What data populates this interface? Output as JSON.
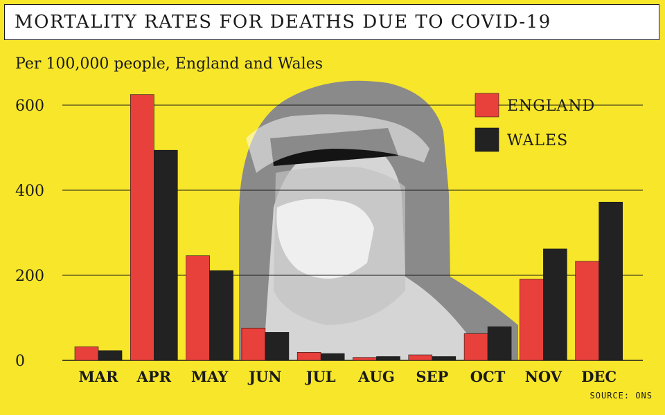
{
  "header": {
    "title": "MORTALITY RATES FOR DEATHS DUE TO COVID-19",
    "subtitle": "Per 100,000 people, England and Wales",
    "source": "SOURCE: ONS"
  },
  "colors": {
    "background": "#f7e62a",
    "england": "#e8403a",
    "wales": "#222222"
  },
  "chart_data": {
    "type": "bar",
    "title": "MORTALITY RATES FOR DEATHS DUE TO COVID-19",
    "subtitle": "Per 100,000 people, England and Wales",
    "xlabel": "",
    "ylabel": "",
    "ylim": [
      0,
      600
    ],
    "yticks": [
      0,
      200,
      400,
      600
    ],
    "grid": true,
    "legend": "top-right",
    "categories": [
      "MAR",
      "APR",
      "MAY",
      "JUN",
      "JUL",
      "AUG",
      "SEP",
      "OCT",
      "NOV",
      "DEC"
    ],
    "series": [
      {
        "name": "ENGLAND",
        "color": "#e8403a",
        "values": [
          32,
          625,
          246,
          76,
          19,
          7,
          13,
          63,
          191,
          233
        ]
      },
      {
        "name": "WALES",
        "color": "#222222",
        "values": [
          23,
          494,
          211,
          66,
          16,
          9,
          9,
          79,
          262,
          372
        ]
      }
    ]
  }
}
